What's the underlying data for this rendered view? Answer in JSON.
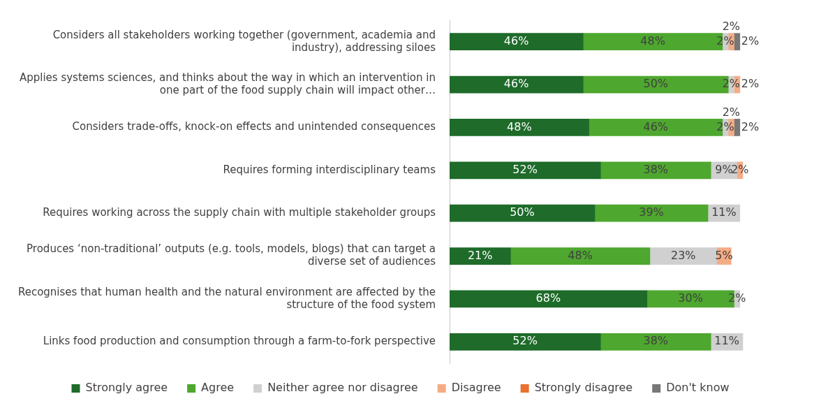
{
  "chart_data": {
    "type": "bar",
    "orientation": "horizontal",
    "stacked": true,
    "categories": [
      "Considers all stakeholders working together (government, academia and industry), addressing siloes",
      "Applies systems sciences, and thinks about the way in which an intervention in one part of the food supply chain will impact other…",
      "Considers trade-offs, knock-on effects and unintended consequences",
      "Requires forming interdisciplinary teams",
      "Requires working across the supply chain with multiple stakeholder groups",
      "Produces ‘non-traditional’ outputs (e.g. tools, models, blogs) that can target a diverse set of audiences",
      "Recognises that human health and the natural environment are affected by the structure of the food system",
      "Links food production and consumption through a farm-to-fork perspective"
    ],
    "series": [
      {
        "name": "Strongly agree",
        "color": "#1e6b2a",
        "values": [
          46,
          46,
          48,
          52,
          50,
          21,
          68,
          52
        ],
        "value_labels": [
          "46%",
          "46%",
          "48%",
          "52%",
          "50%",
          "21%",
          "68%",
          "52%"
        ]
      },
      {
        "name": "Agree",
        "color": "#4ea72e",
        "values": [
          48,
          50,
          46,
          38,
          39,
          48,
          30,
          38
        ],
        "value_labels": [
          "48%",
          "50%",
          "46%",
          "38%",
          "39%",
          "48%",
          "30%",
          "38%"
        ]
      },
      {
        "name": "Neither agree nor disagree",
        "color": "#d0d0d0",
        "values": [
          2,
          2,
          2,
          9,
          11,
          23,
          2,
          11
        ],
        "value_labels": [
          "2%",
          "2%",
          "2%",
          "9%",
          "11%",
          "23%",
          "2%",
          "11%"
        ]
      },
      {
        "name": "Disagree",
        "color": "#f4ac85",
        "values": [
          2,
          2,
          2,
          2,
          null,
          5,
          null,
          null
        ],
        "value_labels": [
          "2%",
          "2%",
          "2%",
          "2%",
          null,
          "5%",
          null,
          null
        ]
      },
      {
        "name": "Strongly disagree",
        "color": "#e97132",
        "values": [
          null,
          null,
          null,
          null,
          null,
          null,
          null,
          null
        ]
      },
      {
        "name": "Don't know",
        "color": "#777777",
        "values": [
          2,
          null,
          2,
          null,
          null,
          null,
          null,
          null
        ],
        "value_labels": [
          "2%",
          null,
          "2%",
          null,
          null,
          null,
          null,
          null
        ]
      }
    ],
    "grid": false,
    "tick_labels": "y",
    "legend": "bottom"
  }
}
